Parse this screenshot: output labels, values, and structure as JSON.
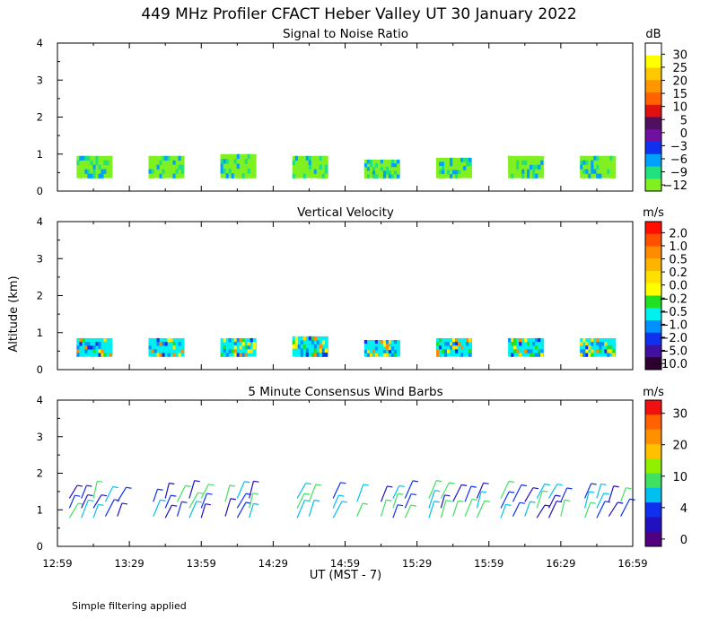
{
  "title": "449 MHz Profiler CFACT Heber Valley UT 30 January 2022",
  "y_axis_label": "Altitude (km)",
  "x_axis_label": "UT  (MST - 7)",
  "footnote": "Simple filtering applied",
  "x_ticks": [
    "12:59",
    "13:29",
    "13:59",
    "14:29",
    "14:59",
    "15:29",
    "15:59",
    "16:29",
    "16:59"
  ],
  "y_ticks": [
    "0",
    "1",
    "2",
    "3",
    "4"
  ],
  "chart_data": [
    {
      "type": "heatmap",
      "title": "Signal to Noise Ratio",
      "unit": "dB",
      "ylim": [
        0,
        4
      ],
      "y_ticks": [
        0,
        1,
        2,
        3,
        4
      ],
      "x_ticks": [
        "12:59",
        "13:29",
        "13:59",
        "14:29",
        "14:59",
        "15:29",
        "15:59",
        "16:29",
        "16:59"
      ],
      "colorbar": {
        "labels": [
          "30",
          "25",
          "20",
          "15",
          "10",
          "5",
          "0",
          "−3",
          "−6",
          "−9",
          "−12"
        ],
        "colors": [
          "#ffffff",
          "#ffff00",
          "#ffc800",
          "#ff9600",
          "#ff6400",
          "#e01010",
          "#501060",
          "#7010a0",
          "#1030f0",
          "#00a0ff",
          "#20e080",
          "#80f020"
        ]
      },
      "observation_blocks": [
        {
          "start": "13:07",
          "end": "13:22",
          "bottom_km": 0.35,
          "top_km": 0.95
        },
        {
          "start": "13:37",
          "end": "13:52",
          "bottom_km": 0.35,
          "top_km": 0.95
        },
        {
          "start": "14:07",
          "end": "14:22",
          "bottom_km": 0.35,
          "top_km": 1.0
        },
        {
          "start": "14:37",
          "end": "14:52",
          "bottom_km": 0.35,
          "top_km": 0.95
        },
        {
          "start": "15:07",
          "end": "15:22",
          "bottom_km": 0.35,
          "top_km": 0.85
        },
        {
          "start": "15:37",
          "end": "15:52",
          "bottom_km": 0.35,
          "top_km": 0.9
        },
        {
          "start": "16:07",
          "end": "16:22",
          "bottom_km": 0.35,
          "top_km": 0.95
        },
        {
          "start": "16:37",
          "end": "16:52",
          "bottom_km": 0.35,
          "top_km": 0.95
        }
      ]
    },
    {
      "type": "heatmap",
      "title": "Vertical Velocity",
      "unit": "m/s",
      "ylim": [
        0,
        4
      ],
      "y_ticks": [
        0,
        1,
        2,
        3,
        4
      ],
      "x_ticks": [
        "12:59",
        "13:29",
        "13:59",
        "14:29",
        "14:59",
        "15:29",
        "15:59",
        "16:29",
        "16:59"
      ],
      "colorbar": {
        "labels": [
          "2.0",
          "1.0",
          "0.5",
          "0.2",
          "0.0",
          "−0.2",
          "−0.5",
          "−1.0",
          "−2.0",
          "−5.0",
          "−10.0"
        ],
        "colors": [
          "#ff1000",
          "#ff5000",
          "#ff8c00",
          "#ffb400",
          "#ffe000",
          "#ffff00",
          "#20e020",
          "#00f0f0",
          "#0090ff",
          "#1030f0",
          "#4010a0",
          "#300030"
        ]
      },
      "observation_blocks": [
        {
          "start": "13:07",
          "end": "13:22",
          "bottom_km": 0.35,
          "top_km": 0.85
        },
        {
          "start": "13:37",
          "end": "13:52",
          "bottom_km": 0.35,
          "top_km": 0.85
        },
        {
          "start": "14:07",
          "end": "14:22",
          "bottom_km": 0.35,
          "top_km": 0.85
        },
        {
          "start": "14:37",
          "end": "14:52",
          "bottom_km": 0.35,
          "top_km": 0.9
        },
        {
          "start": "15:07",
          "end": "15:22",
          "bottom_km": 0.35,
          "top_km": 0.8
        },
        {
          "start": "15:37",
          "end": "15:52",
          "bottom_km": 0.35,
          "top_km": 0.85
        },
        {
          "start": "16:07",
          "end": "16:22",
          "bottom_km": 0.35,
          "top_km": 0.85
        },
        {
          "start": "16:37",
          "end": "16:52",
          "bottom_km": 0.35,
          "top_km": 0.85
        }
      ]
    },
    {
      "type": "scatter",
      "title": "5 Minute Consensus Wind Barbs",
      "unit": "m/s",
      "ylim": [
        0,
        4
      ],
      "y_ticks": [
        0,
        1,
        2,
        3,
        4
      ],
      "x_ticks": [
        "12:59",
        "13:29",
        "13:59",
        "14:29",
        "14:59",
        "15:29",
        "15:59",
        "16:29",
        "16:59"
      ],
      "colorbar": {
        "labels": [
          "30",
          "20",
          "10",
          "4",
          "0"
        ],
        "colors": [
          "#f01010",
          "#ff6000",
          "#ff9000",
          "#ffc000",
          "#90f000",
          "#40e060",
          "#00c0f0",
          "#1030f0",
          "#2010c0",
          "#500080"
        ]
      },
      "barb_times": [
        "13:04",
        "13:09",
        "13:14",
        "13:19",
        "13:24",
        "13:39",
        "13:44",
        "13:49",
        "13:54",
        "13:59",
        "14:09",
        "14:14",
        "14:19",
        "14:39",
        "14:44",
        "14:54",
        "15:04",
        "15:14",
        "15:19",
        "15:24",
        "15:34",
        "15:39",
        "15:44",
        "15:49",
        "15:54",
        "16:04",
        "16:09",
        "16:14",
        "16:19",
        "16:24",
        "16:29",
        "16:39",
        "16:44",
        "16:49",
        "16:54"
      ],
      "barb_altitude_range_km": [
        0.7,
        1.5
      ]
    }
  ]
}
